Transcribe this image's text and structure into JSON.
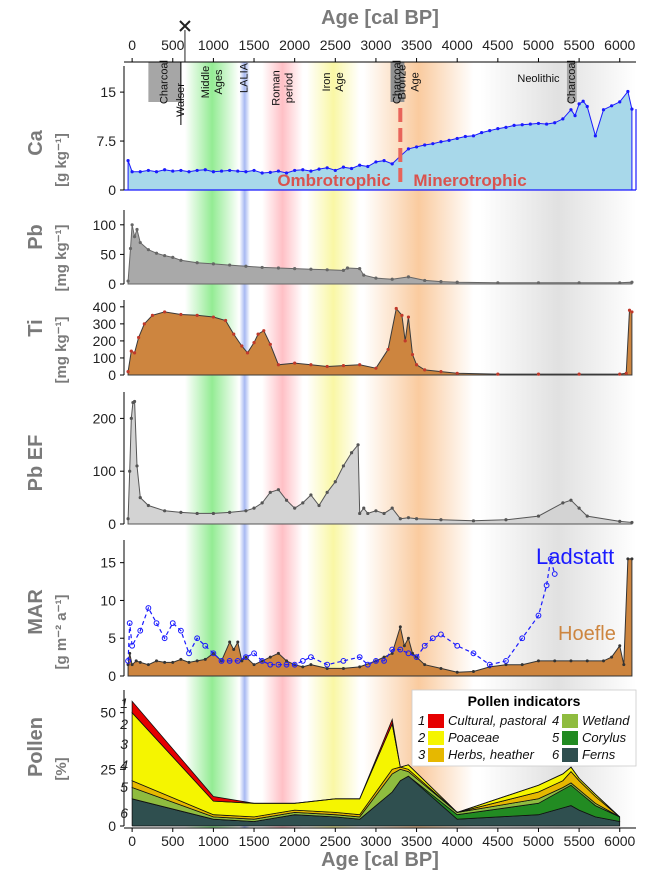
{
  "chart_data": {
    "type": "area",
    "xlabel": "Age [cal BP]",
    "xlim": [
      -100,
      6200
    ],
    "xticks": [
      0,
      500,
      1000,
      1500,
      2000,
      2500,
      3000,
      3500,
      4000,
      4500,
      5000,
      5500,
      6000
    ],
    "periods": [
      {
        "label": "Charcoal",
        "from": 200,
        "to": 600,
        "color": "#a6a6a6"
      },
      {
        "label": "Walser",
        "from": 550,
        "to": 650,
        "color": "#ffffff"
      },
      {
        "label": "Middle Ages",
        "from": 650,
        "to": 1320,
        "color": "#3cdc3c"
      },
      {
        "label": "LALIA",
        "from": 1320,
        "to": 1450,
        "color": "#6080e8"
      },
      {
        "label": "Roman period",
        "from": 1600,
        "to": 2100,
        "color": "#ff8c96"
      },
      {
        "label": "Iron Age",
        "from": 2150,
        "to": 2800,
        "color": "#f5f05a"
      },
      {
        "label": "Bronze Age",
        "from": 2850,
        "to": 4200,
        "color": "#f5a050"
      },
      {
        "label": "Charcoal",
        "from": 3180,
        "to": 3350,
        "color": "#909090"
      },
      {
        "label": "Neolithic",
        "from": 4280,
        "to": 6200,
        "color": "#c8c8c8"
      },
      {
        "label": "Charcoal",
        "from": 5350,
        "to": 5470,
        "color": "#a6a6a6"
      }
    ],
    "panels": [
      {
        "name": "ca",
        "ylabel": "Ca",
        "unit": "[g kg⁻¹]",
        "ylim": [
          0,
          19
        ],
        "yticks": [
          0,
          7.5,
          15
        ],
        "ytick_labels": [
          "0",
          "7.5",
          "15"
        ],
        "fill": "#a8d8ea",
        "line": "#1a1aff",
        "annotations": [
          "Ombrotrophic",
          "Minerotrophic"
        ],
        "transition_age": 3300,
        "x": [
          -50,
          0,
          100,
          200,
          300,
          400,
          500,
          600,
          700,
          800,
          900,
          1000,
          1100,
          1200,
          1300,
          1400,
          1500,
          1600,
          1700,
          1800,
          1900,
          2000,
          2100,
          2200,
          2300,
          2400,
          2500,
          2600,
          2700,
          2800,
          2900,
          3000,
          3100,
          3200,
          3300,
          3400,
          3500,
          3600,
          3700,
          3800,
          3900,
          4000,
          4100,
          4200,
          4300,
          4400,
          4500,
          4600,
          4700,
          4800,
          4900,
          5000,
          5100,
          5200,
          5300,
          5400,
          5450,
          5500,
          5550,
          5600,
          5700,
          5800,
          5900,
          6000,
          6100,
          6150
        ],
        "y": [
          4.5,
          2.8,
          2.8,
          3.0,
          2.8,
          3.1,
          2.9,
          3.0,
          2.8,
          3.0,
          3.1,
          2.8,
          2.9,
          3.0,
          2.9,
          2.8,
          3.0,
          2.6,
          2.7,
          2.9,
          2.6,
          3.0,
          3.1,
          2.9,
          3.2,
          3.4,
          3.0,
          3.5,
          3.3,
          3.8,
          3.6,
          4.3,
          4.5,
          4.0,
          5.2,
          6.3,
          6.6,
          6.9,
          7.1,
          7.4,
          7.6,
          7.9,
          8.2,
          8.3,
          8.8,
          9.1,
          9.4,
          9.6,
          9.9,
          10.0,
          10.1,
          10.2,
          10.1,
          10.3,
          10.9,
          12.3,
          11.4,
          13.2,
          13.6,
          12.8,
          8.3,
          12.3,
          12.9,
          13.5,
          15.1,
          12.4
        ]
      },
      {
        "name": "pb",
        "ylabel": "Pb",
        "unit": "[mg kg⁻¹]",
        "ylim": [
          0,
          125
        ],
        "yticks": [
          0,
          50,
          100
        ],
        "ytick_labels": [
          "0",
          "50",
          "100"
        ],
        "fill": "#a9a9a9",
        "line": "#666666",
        "x": [
          -50,
          -20,
          0,
          30,
          60,
          100,
          200,
          300,
          400,
          500,
          600,
          800,
          1000,
          1200,
          1400,
          1600,
          1800,
          2000,
          2200,
          2400,
          2600,
          2650,
          2800,
          2850,
          3000,
          3200,
          3400,
          3600,
          3800,
          4000,
          4500,
          5000,
          5500,
          6000,
          6150
        ],
        "y": [
          5,
          60,
          100,
          80,
          92,
          70,
          58,
          52,
          48,
          45,
          40,
          36,
          34,
          32,
          30,
          28,
          27,
          26,
          25,
          24,
          23,
          27,
          26,
          15,
          10,
          8,
          12,
          6,
          4,
          3,
          2,
          2,
          2,
          2,
          3
        ]
      },
      {
        "name": "ti",
        "ylabel": "Ti",
        "unit": "[mg kg⁻¹]",
        "ylim": [
          0,
          440
        ],
        "yticks": [
          0,
          100,
          200,
          300,
          400
        ],
        "ytick_labels": [
          "0",
          "100",
          "200",
          "300",
          "400"
        ],
        "fill": "#cd853f",
        "line": "#3a3a3a",
        "x": [
          -50,
          -10,
          30,
          80,
          150,
          250,
          400,
          600,
          800,
          1000,
          1150,
          1250,
          1350,
          1420,
          1500,
          1550,
          1620,
          1700,
          1800,
          2000,
          2200,
          2400,
          2600,
          2800,
          3000,
          3150,
          3250,
          3320,
          3360,
          3400,
          3450,
          3500,
          3600,
          3800,
          4000,
          4500,
          5000,
          5500,
          6000,
          6080,
          6120,
          6150
        ],
        "y": [
          20,
          140,
          130,
          220,
          300,
          350,
          370,
          355,
          350,
          340,
          320,
          240,
          170,
          130,
          190,
          240,
          260,
          180,
          60,
          70,
          60,
          50,
          55,
          60,
          40,
          150,
          390,
          350,
          200,
          340,
          120,
          60,
          30,
          20,
          10,
          5,
          5,
          5,
          5,
          10,
          380,
          370
        ]
      },
      {
        "name": "pbef",
        "ylabel": "Pb EF",
        "unit": "",
        "ylim": [
          0,
          250
        ],
        "yticks": [
          0,
          100,
          200
        ],
        "ytick_labels": [
          "0",
          "100",
          "200"
        ],
        "fill": "#d3d3d3",
        "line": "#555555",
        "x": [
          -50,
          -30,
          -10,
          10,
          30,
          60,
          100,
          200,
          400,
          600,
          800,
          1000,
          1200,
          1400,
          1500,
          1600,
          1700,
          1800,
          1900,
          2000,
          2100,
          2200,
          2300,
          2400,
          2500,
          2600,
          2700,
          2780,
          2800,
          2850,
          2900,
          3000,
          3100,
          3200,
          3300,
          3400,
          3500,
          3800,
          4200,
          4600,
          5000,
          5300,
          5400,
          5500,
          5600,
          6000,
          6150
        ],
        "y": [
          10,
          100,
          200,
          230,
          232,
          110,
          50,
          35,
          25,
          22,
          20,
          20,
          22,
          25,
          30,
          40,
          60,
          65,
          45,
          30,
          40,
          55,
          35,
          60,
          80,
          110,
          135,
          150,
          20,
          30,
          20,
          25,
          20,
          30,
          10,
          12,
          10,
          8,
          6,
          8,
          15,
          40,
          45,
          30,
          15,
          5,
          3
        ]
      },
      {
        "name": "mar",
        "ylabel": "MAR",
        "unit": "[g m⁻² a⁻¹]",
        "ylim": [
          0,
          18
        ],
        "yticks": [
          0,
          5,
          10,
          15
        ],
        "ytick_labels": [
          "0",
          "5",
          "10",
          "15"
        ],
        "fill": "#cd853f",
        "line": "#333333",
        "series": [
          {
            "name": "Hoefle",
            "color": "#cd853f",
            "x": [
              -50,
              -30,
              0,
              50,
              100,
              200,
              300,
              400,
              500,
              600,
              700,
              800,
              900,
              1000,
              1100,
              1200,
              1250,
              1300,
              1350,
              1400,
              1500,
              1600,
              1700,
              1800,
              1900,
              2000,
              2100,
              2200,
              2400,
              2600,
              2800,
              3000,
              3100,
              3200,
              3300,
              3350,
              3400,
              3450,
              3500,
              3600,
              3800,
              4000,
              4200,
              4400,
              4600,
              4800,
              5000,
              5200,
              5400,
              5600,
              5800,
              5900,
              6000,
              6050,
              6100,
              6150
            ],
            "y": [
              1.5,
              3.0,
              1.5,
              2.0,
              1.8,
              1.5,
              2.0,
              1.8,
              1.8,
              2.2,
              1.8,
              2.0,
              2.2,
              3.0,
              2.0,
              4.5,
              3.5,
              4.5,
              2.0,
              2.5,
              1.5,
              2.0,
              2.5,
              3.0,
              2.0,
              1.5,
              1.2,
              1.5,
              1.0,
              1.0,
              1.2,
              2.0,
              2.5,
              3.0,
              6.5,
              4.0,
              5.0,
              3.0,
              2.5,
              1.5,
              1.0,
              0.5,
              0.6,
              1.2,
              1.5,
              1.5,
              2.0,
              2.0,
              2.0,
              2.0,
              2.0,
              2.5,
              4.0,
              1.5,
              15.5,
              15.5
            ]
          },
          {
            "name": "Ladstatt",
            "color": "#1a1aff",
            "x": [
              -50,
              -30,
              0,
              100,
              200,
              300,
              400,
              500,
              600,
              700,
              800,
              900,
              1000,
              1100,
              1200,
              1300,
              1400,
              1500,
              1600,
              1700,
              1800,
              1900,
              2000,
              2100,
              2200,
              2400,
              2600,
              2800,
              2900,
              3000,
              3100,
              3200,
              3300,
              3400,
              3500,
              3600,
              3700,
              3800,
              4000,
              4200,
              4400,
              4600,
              4800,
              5000,
              5100,
              5150,
              5200
            ],
            "y": [
              2.0,
              7.0,
              4.0,
              6.0,
              9.0,
              7.0,
              5.0,
              7.0,
              6.0,
              3.0,
              5.0,
              4.0,
              3.0,
              2.0,
              2.0,
              2.0,
              2.5,
              3.0,
              2.0,
              1.5,
              1.5,
              1.5,
              1.5,
              2.0,
              2.5,
              1.5,
              2.0,
              2.5,
              1.5,
              2.0,
              2.0,
              3.5,
              3.5,
              3.0,
              2.5,
              4.0,
              5.0,
              5.5,
              4.0,
              3.0,
              1.5,
              2.0,
              5.0,
              8.0,
              12.0,
              15.5,
              13.5
            ]
          }
        ]
      },
      {
        "name": "pollen",
        "ylabel": "Pollen",
        "unit": "[%]",
        "ylim": [
          0,
          60
        ],
        "yticks": [
          0,
          25,
          50
        ],
        "ytick_labels": [
          "0",
          "25",
          "50"
        ],
        "legend_title": "Pollen indicators",
        "legend_position": "top-right",
        "x": [
          0,
          1000,
          1500,
          2000,
          2500,
          2800,
          3200,
          3300,
          3400,
          4000,
          5000,
          5300,
          5400,
          5500,
          5700,
          6000
        ],
        "series": [
          {
            "num": "6",
            "name": "Ferns",
            "color": "#2f4f4f",
            "values": [
              12,
              3,
              2,
              5,
              4,
              3,
              15,
              20,
              22,
              3,
              5,
              8,
              9,
              7,
              4,
              2
            ]
          },
          {
            "num": "5",
            "name": "Corylus",
            "color": "#228b22",
            "values": [
              0,
              0,
              0,
              0,
              0,
              0,
              0,
              0,
              0,
              2,
              5,
              8,
              9,
              8,
              5,
              2
            ]
          },
          {
            "num": "4",
            "name": "Wetland",
            "color": "#8fbc3f",
            "values": [
              5,
              1,
              1,
              1,
              1,
              1,
              8,
              5,
              2,
              1,
              2,
              1,
              1,
              1,
              1,
              0
            ]
          },
          {
            "num": "3",
            "name": "Herbs, heather",
            "color": "#e6b800",
            "values": [
              3,
              1,
              1,
              1,
              1,
              1,
              2,
              1,
              1,
              0,
              3,
              3,
              5,
              4,
              3,
              0
            ]
          },
          {
            "num": "2",
            "name": "Poaceae",
            "color": "#f5f500",
            "values": [
              30,
              6,
              6,
              3,
              6,
              7,
              20,
              0,
              2,
              0,
              3,
              3,
              2,
              1,
              1,
              0
            ]
          },
          {
            "num": "1",
            "name": "Cultural, pastoral",
            "color": "#e60000",
            "values": [
              5,
              2,
              0,
              0,
              0,
              0,
              2,
              0,
              0,
              0,
              0,
              0,
              0,
              0,
              0,
              0
            ]
          }
        ]
      }
    ]
  }
}
